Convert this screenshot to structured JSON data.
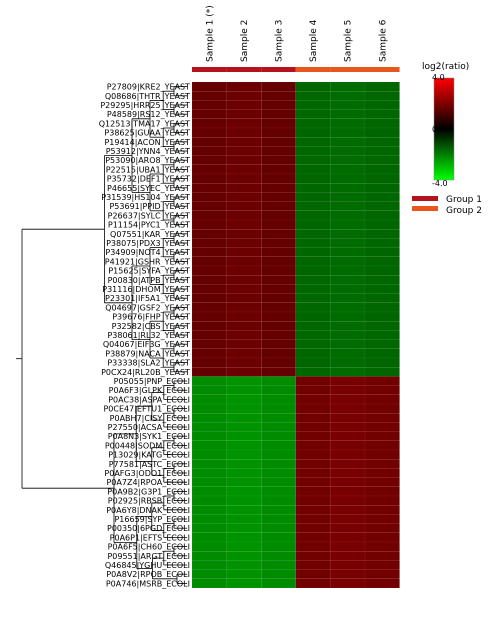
{
  "chart_data": {
    "type": "heatmap",
    "samples": [
      "Sample 1 (*)",
      "Sample 2",
      "Sample 3",
      "Sample 4",
      "Sample 5",
      "Sample 6"
    ],
    "sample_groups": [
      "Group 1",
      "Group 1",
      "Group 1",
      "Group 2",
      "Group 2",
      "Group 2"
    ],
    "groups": [
      {
        "name": "Group 1",
        "color": "#b5121b"
      },
      {
        "name": "Group 2",
        "color": "#e8561e"
      }
    ],
    "rows": [
      "P27809|KRE2_YEAST",
      "Q08686|THTR_YEAST",
      "P29295|HRR25_YEAST",
      "P48589|RS12_YEAST",
      "Q12513|TMA17_YEAST",
      "P38625|GUAA_YEAST",
      "P19414|ACON_YEAST",
      "P53912|YNN4_YEAST",
      "P53090|ARO8_YEAST",
      "P22515|UBA1_YEAST",
      "P35732|DEF1_YEAST",
      "P46655|SYEC_YEAST",
      "P31539|HS104_YEAST",
      "P53691|PPID_YEAST",
      "P26637|SYLC_YEAST",
      "P11154|PYC1_YEAST",
      "Q07551|KAR_YEAST",
      "P38075|PDX3_YEAST",
      "P34909|NOT4_YEAST",
      "P41921|GSHR_YEAST",
      "P15625|SYFA_YEAST",
      "P00830|ATPB_YEAST",
      "P31116|DHOM_YEAST",
      "P23301|IF5A1_YEAST",
      "Q04697|GSF2_YEAST",
      "P39676|FHP_YEAST",
      "P32582|CBS_YEAST",
      "P38061|RL32_YEAST",
      "Q04067|EIF3G_YEAST",
      "P38879|NACA_YEAST",
      "P33338|SLA2_YEAST",
      "P0CX24|RL20B_YEAST",
      "P05055|PNP_ECOLI",
      "P0A6F3|GLPK_ECOLI",
      "P0AC38|ASPA_ECOLI",
      "P0CE47|EFTU1_ECOLI",
      "P0ABH7|CISY_ECOLI",
      "P27550|ACSA_ECOLI",
      "P0A8N3|SYK1_ECOLI",
      "P00448|SODM_ECOLI",
      "P13029|KATG_ECOLI",
      "P77581|ASTC_ECOLI",
      "P0AFG3|ODO1_ECOLI",
      "P0A7Z4|RPOA_ECOLI",
      "P0A9B2|G3P1_ECOLI",
      "P02925|RBSB_ECOLI",
      "P0A6Y8|DNAK_ECOLI",
      "P16659|SYP_ECOLI",
      "P00350|6PGD_ECOLI",
      "P0A6P1|EFTS_ECOLI",
      "P0A6F5|CH60_ECOLI",
      "P09551|ARGT_ECOLI",
      "Q46845|YGHU_ECOLI",
      "P0A8V2|RPOB_ECOLI",
      "P0A746|MSRB_ECOLI"
    ],
    "values": [
      [
        1.6,
        1.7,
        1.6,
        -1.6,
        -1.7,
        -1.6
      ],
      [
        1.6,
        1.7,
        1.6,
        -1.6,
        -1.7,
        -1.6
      ],
      [
        1.6,
        1.7,
        1.6,
        -1.6,
        -1.7,
        -1.6
      ],
      [
        1.6,
        1.7,
        1.6,
        -1.6,
        -1.7,
        -1.6
      ],
      [
        1.6,
        1.7,
        1.6,
        -1.6,
        -1.7,
        -1.6
      ],
      [
        1.6,
        1.7,
        1.6,
        -1.6,
        -1.7,
        -1.6
      ],
      [
        1.6,
        1.7,
        1.6,
        -1.6,
        -1.7,
        -1.6
      ],
      [
        1.6,
        1.7,
        1.6,
        -1.6,
        -1.7,
        -1.6
      ],
      [
        1.6,
        1.7,
        1.6,
        -1.6,
        -1.7,
        -1.6
      ],
      [
        1.6,
        1.7,
        1.6,
        -1.6,
        -1.7,
        -1.6
      ],
      [
        1.6,
        1.7,
        1.6,
        -1.6,
        -1.7,
        -1.6
      ],
      [
        1.6,
        1.7,
        1.6,
        -1.6,
        -1.7,
        -1.6
      ],
      [
        1.6,
        1.7,
        1.6,
        -1.6,
        -1.7,
        -1.6
      ],
      [
        1.6,
        1.7,
        1.6,
        -1.6,
        -1.7,
        -1.6
      ],
      [
        1.6,
        1.7,
        1.6,
        -1.6,
        -1.7,
        -1.6
      ],
      [
        1.6,
        1.7,
        1.6,
        -1.6,
        -1.7,
        -1.6
      ],
      [
        1.6,
        1.7,
        1.6,
        -1.6,
        -1.7,
        -1.6
      ],
      [
        1.6,
        1.7,
        1.6,
        -1.6,
        -1.7,
        -1.6
      ],
      [
        1.6,
        1.7,
        1.6,
        -1.6,
        -1.7,
        -1.6
      ],
      [
        1.6,
        1.7,
        1.6,
        -1.6,
        -1.7,
        -1.6
      ],
      [
        1.6,
        1.7,
        1.6,
        -1.6,
        -1.7,
        -1.6
      ],
      [
        1.6,
        1.7,
        1.6,
        -1.6,
        -1.7,
        -1.6
      ],
      [
        1.6,
        1.7,
        1.6,
        -1.6,
        -1.7,
        -1.6
      ],
      [
        1.6,
        1.7,
        1.6,
        -1.6,
        -1.7,
        -1.6
      ],
      [
        1.6,
        1.7,
        1.6,
        -1.6,
        -1.7,
        -1.6
      ],
      [
        1.6,
        1.7,
        1.6,
        -1.6,
        -1.7,
        -1.6
      ],
      [
        1.6,
        1.7,
        1.6,
        -1.6,
        -1.7,
        -1.6
      ],
      [
        1.6,
        1.7,
        1.6,
        -1.6,
        -1.7,
        -1.6
      ],
      [
        1.6,
        1.7,
        1.6,
        -1.6,
        -1.7,
        -1.6
      ],
      [
        1.6,
        1.7,
        1.6,
        -1.6,
        -1.7,
        -1.6
      ],
      [
        1.6,
        1.7,
        1.6,
        -1.6,
        -1.7,
        -1.6
      ],
      [
        1.6,
        1.7,
        1.6,
        -1.6,
        -1.7,
        -1.6
      ],
      [
        -2.2,
        -2.3,
        -2.2,
        1.8,
        1.9,
        1.8
      ],
      [
        -2.2,
        -2.3,
        -2.2,
        1.8,
        1.9,
        1.8
      ],
      [
        -2.2,
        -2.3,
        -2.2,
        1.8,
        1.9,
        1.8
      ],
      [
        -2.2,
        -2.3,
        -2.2,
        1.8,
        1.9,
        1.8
      ],
      [
        -2.2,
        -2.3,
        -2.2,
        1.8,
        1.9,
        1.8
      ],
      [
        -2.2,
        -2.3,
        -2.2,
        1.8,
        1.9,
        1.8
      ],
      [
        -2.2,
        -2.3,
        -2.2,
        1.8,
        1.9,
        1.8
      ],
      [
        -2.2,
        -2.3,
        -2.2,
        1.8,
        1.9,
        1.8
      ],
      [
        -2.2,
        -2.3,
        -2.2,
        1.8,
        1.9,
        1.8
      ],
      [
        -2.2,
        -2.3,
        -2.2,
        1.8,
        1.9,
        1.8
      ],
      [
        -2.2,
        -2.3,
        -2.2,
        1.8,
        1.9,
        1.8
      ],
      [
        -2.2,
        -2.3,
        -2.2,
        1.8,
        1.9,
        1.8
      ],
      [
        -2.2,
        -2.3,
        -2.2,
        1.8,
        1.9,
        1.8
      ],
      [
        -2.2,
        -2.3,
        -2.2,
        1.8,
        1.9,
        1.8
      ],
      [
        -2.2,
        -2.3,
        -2.2,
        1.8,
        1.9,
        1.8
      ],
      [
        -2.2,
        -2.3,
        -2.2,
        1.8,
        1.9,
        1.8
      ],
      [
        -2.2,
        -2.3,
        -2.2,
        1.8,
        1.9,
        1.8
      ],
      [
        -2.2,
        -2.3,
        -2.2,
        1.8,
        1.9,
        1.8
      ],
      [
        -2.2,
        -2.3,
        -2.2,
        1.8,
        1.9,
        1.8
      ],
      [
        -2.2,
        -2.3,
        -2.2,
        1.8,
        1.9,
        1.8
      ],
      [
        -2.2,
        -2.3,
        -2.2,
        1.8,
        1.9,
        1.8
      ],
      [
        -2.2,
        -2.3,
        -2.2,
        1.8,
        1.9,
        1.8
      ],
      [
        -2.2,
        -2.3,
        -2.2,
        1.8,
        1.9,
        1.8
      ]
    ],
    "colorbar": {
      "title": "log2(ratio)",
      "range": [
        -4.0,
        4.0
      ],
      "ticks": [
        "4.0",
        "0.0",
        "-4.0"
      ],
      "colors": [
        "#ff0000",
        "#000000",
        "#00ff00"
      ]
    },
    "dendrogram": true,
    "legend_position": "right"
  }
}
